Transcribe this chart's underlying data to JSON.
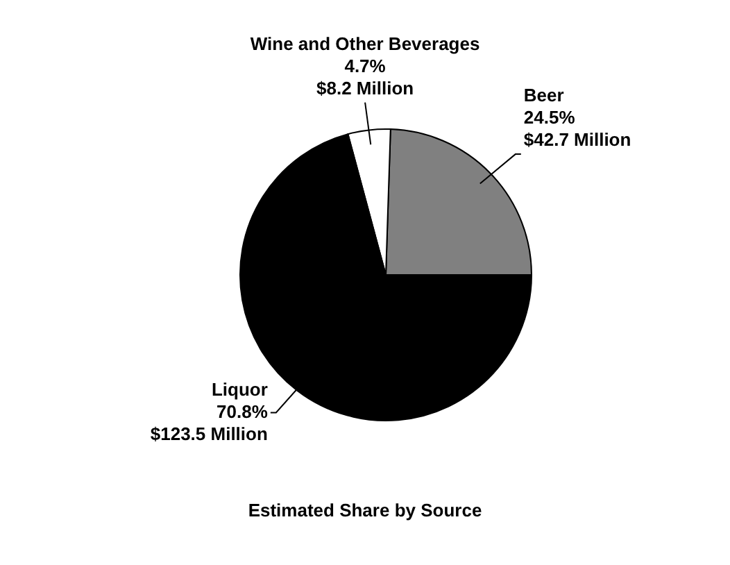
{
  "chart_data": {
    "type": "pie",
    "title": "Estimated Share by Source",
    "categories": [
      "Beer",
      "Wine and Other Beverages",
      "Liquor"
    ],
    "values": [
      42.7,
      8.2,
      123.5
    ],
    "value_labels": [
      "24.5%\n$42.7 Million",
      "4.7%\n$8.2 Million",
      "70.8%\n$123.5 Million"
    ],
    "colors": [
      "#808080",
      "#ffffff",
      "#000000"
    ],
    "legend": false
  }
}
